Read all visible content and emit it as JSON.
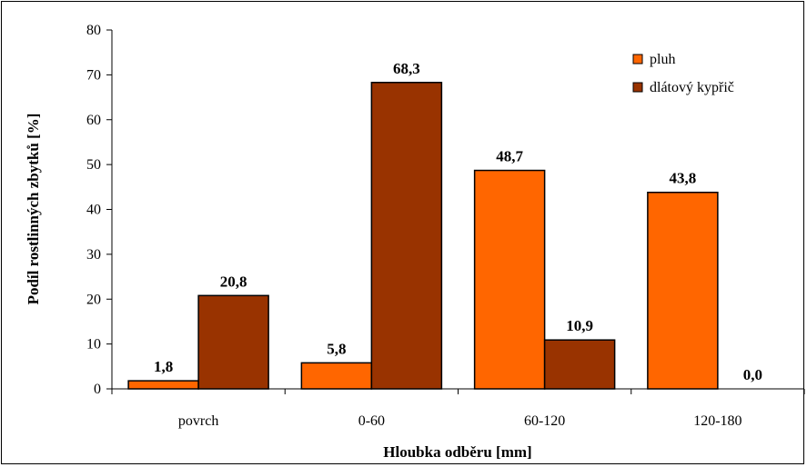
{
  "chart_data": {
    "type": "bar",
    "categories": [
      "povrch",
      "0-60",
      "60-120",
      "120-180"
    ],
    "series": [
      {
        "name": "pluh",
        "color": "#FF6600",
        "values": [
          1.8,
          5.8,
          48.7,
          43.8
        ],
        "labels": [
          "1,8",
          "5,8",
          "48,7",
          "43,8"
        ]
      },
      {
        "name": "dlátový kypřič",
        "color": "#993300",
        "values": [
          20.8,
          68.3,
          10.9,
          0.0
        ],
        "labels": [
          "20,8",
          "68,3",
          "10,9",
          "0,0"
        ]
      }
    ],
    "xlabel": "Hloubka odběru [mm]",
    "ylabel": "Podíl rostlinných zbytků [%]",
    "ylim": [
      0,
      80
    ],
    "yticks": [
      0,
      10,
      20,
      30,
      40,
      50,
      60,
      70,
      80
    ],
    "grid": false,
    "legend": "top-right"
  }
}
